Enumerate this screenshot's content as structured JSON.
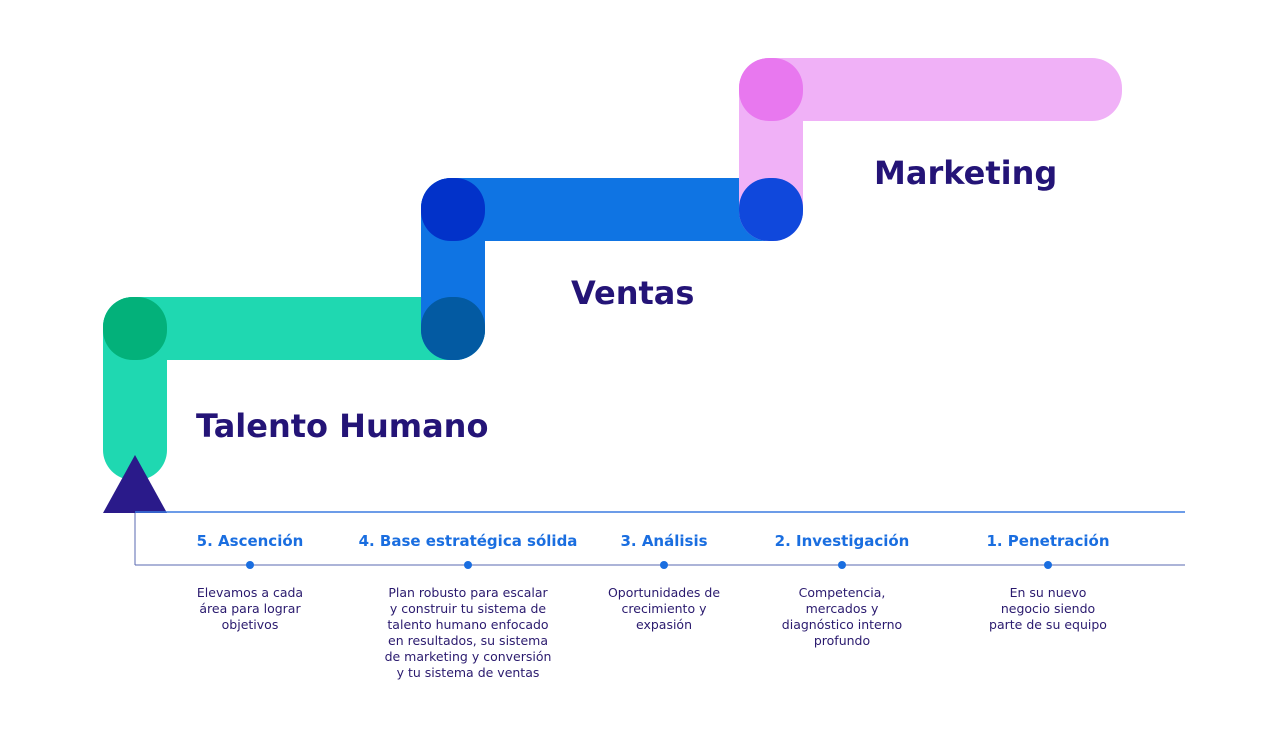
{
  "stages": [
    {
      "label": "Talento Humano"
    },
    {
      "label": "Ventas"
    },
    {
      "label": "Marketing"
    }
  ],
  "steps": [
    {
      "title": "5. Ascención",
      "lines": [
        "Elevamos a cada",
        "área para lograr",
        "objetivos"
      ]
    },
    {
      "title": "4. Base estratégica sólida",
      "lines": [
        "Plan robusto para escalar",
        "y construir tu sistema de",
        "talento humano enfocado",
        "en resultados, su sistema",
        "de marketing y conversión",
        "y tu sistema de ventas"
      ]
    },
    {
      "title": "3. Análisis",
      "lines": [
        "Oportunidades de",
        "crecimiento y",
        "expasión"
      ]
    },
    {
      "title": "2. Investigación",
      "lines": [
        "Competencia,",
        "mercados y",
        "diagnóstico interno",
        "profundo"
      ]
    },
    {
      "title": "1. Penetración",
      "lines": [
        "En su nuevo",
        "negocio siendo",
        "parte de su equipo"
      ]
    }
  ]
}
